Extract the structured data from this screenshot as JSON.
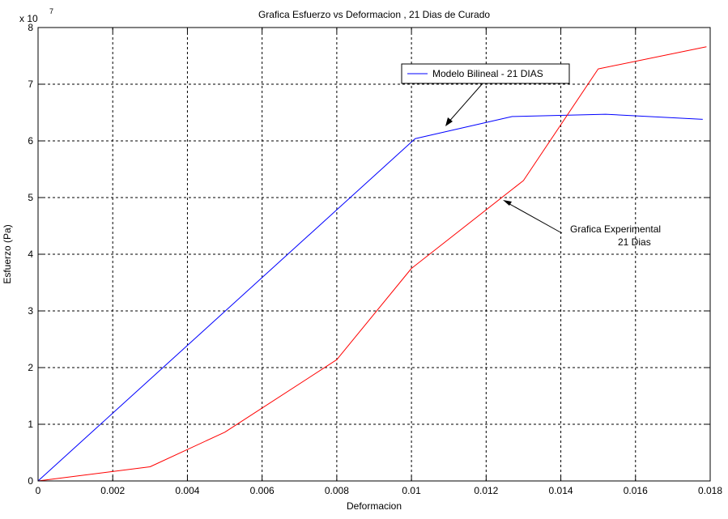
{
  "chart_data": {
    "type": "line",
    "title": "Grafica Esfuerzo vs Deformacion ,  21 Dias de Curado",
    "xlabel": "Deformacion",
    "ylabel": "Esfuerzo (Pa)",
    "y_multiplier": "x 10",
    "y_multiplier_exp": "7",
    "xlim": [
      0,
      0.018
    ],
    "ylim": [
      0,
      8
    ],
    "x_ticks": [
      0,
      0.002,
      0.004,
      0.006,
      0.008,
      0.01,
      0.012,
      0.014,
      0.016,
      0.018
    ],
    "x_tick_labels": [
      "0",
      "0.002",
      "0.004",
      "0.006",
      "0.008",
      "0.01",
      "0.012",
      "0.014",
      "0.016",
      "0.018"
    ],
    "y_ticks": [
      0,
      1,
      2,
      3,
      4,
      5,
      6,
      7,
      8
    ],
    "y_tick_labels": [
      "0",
      "1",
      "2",
      "3",
      "4",
      "5",
      "6",
      "7",
      "8"
    ],
    "grid": true,
    "series": [
      {
        "name": "Modelo Bilineal - 21 DIAS",
        "color": "#0000ff",
        "points": [
          [
            0,
            0
          ],
          [
            0.0101,
            6.04
          ],
          [
            0.0127,
            6.43
          ],
          [
            0.0152,
            6.47
          ],
          [
            0.0178,
            6.38
          ]
        ]
      },
      {
        "color": "#ff0000",
        "points": [
          [
            0,
            0
          ],
          [
            0.003,
            0.25
          ],
          [
            0.005,
            0.86
          ],
          [
            0.008,
            2.14
          ],
          [
            0.01,
            3.75
          ],
          [
            0.013,
            5.3
          ],
          [
            0.015,
            7.27
          ],
          [
            0.0179,
            7.66
          ]
        ]
      }
    ],
    "legend": {
      "label": "Modelo Bilineal - 21 DIAS",
      "placement": "upper-center"
    },
    "annotations": [
      {
        "lines": [
          "Grafica Experimental",
          "21 Dias"
        ],
        "arrow_to": [
          0.0124,
          4.95
        ]
      },
      {
        "arrow_to": [
          0.01025,
          6.25
        ]
      }
    ]
  }
}
